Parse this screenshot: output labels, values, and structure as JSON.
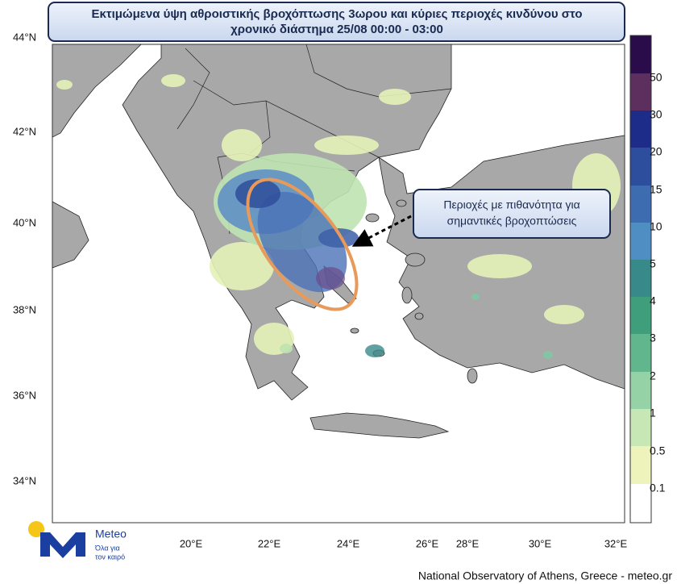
{
  "title": [
    "Εκτιμώμενα ύψη αθροιστικής βροχόπτωσης 3ωρου και κύριες περιοχές κινδύνου στο",
    "χρονικό διάστημα 25/08 00:00 - 03:00"
  ],
  "annotation": [
    "Περιοχές με πιθανότητα για",
    "σημαντικές βροχοπτώσεις"
  ],
  "latitude_labels": [
    "44°N",
    "42°N",
    "40°N",
    "38°N",
    "36°N",
    "34°N"
  ],
  "longitude_labels": [
    "20°E",
    "22°E",
    "24°E",
    "26°E",
    "28°E",
    "30°E",
    "32°E"
  ],
  "colorbar": {
    "labels": [
      "50",
      "30",
      "20",
      "15",
      "10",
      "5",
      "4",
      "3",
      "2",
      "1",
      "0.5",
      "0.1"
    ]
  },
  "logo": {
    "name": "Meteo",
    "tagline": [
      "Όλα για",
      "τον καιρό"
    ]
  },
  "footer": "National Observatory of Athens, Greece - meteo.gr"
}
